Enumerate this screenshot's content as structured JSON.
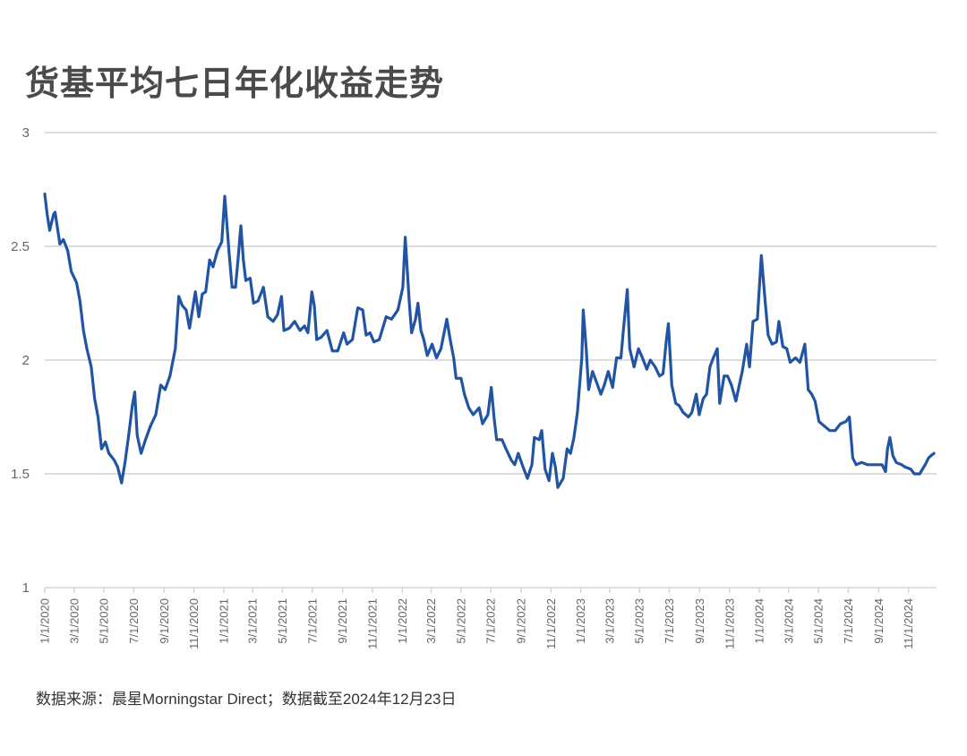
{
  "chart_data": {
    "type": "line",
    "title": "货基平均七日年化收益走势",
    "xlabel": "",
    "ylabel": "",
    "ylim": [
      1,
      3
    ],
    "yticks": [
      "1",
      "1.5",
      "2",
      "2.5",
      "3"
    ],
    "xlim": [
      "2020-01-01",
      "2024-12-23"
    ],
    "xticks": [
      "1/1/2020",
      "3/1/2020",
      "5/1/2020",
      "7/1/2020",
      "9/1/2020",
      "11/1/2020",
      "1/1/2021",
      "3/1/2021",
      "5/1/2021",
      "7/1/2021",
      "9/1/2021",
      "11/1/2021",
      "1/1/2022",
      "3/1/2022",
      "5/1/2022",
      "7/1/2022",
      "9/1/2022",
      "11/1/2022",
      "1/1/2023",
      "3/1/2023",
      "5/1/2023",
      "7/1/2023",
      "9/1/2023",
      "11/1/2023",
      "1/1/2024",
      "3/1/2024",
      "5/1/2024",
      "7/1/2024",
      "9/1/2024",
      "11/1/2024"
    ],
    "grid": true,
    "legend": "none",
    "line_color": "#2155a3",
    "points": [
      [
        "2020-01-01",
        2.73
      ],
      [
        "2020-01-06",
        2.64
      ],
      [
        "2020-01-11",
        2.57
      ],
      [
        "2020-01-19",
        2.64
      ],
      [
        "2020-01-22",
        2.65
      ],
      [
        "2020-02-01",
        2.51
      ],
      [
        "2020-02-08",
        2.53
      ],
      [
        "2020-02-17",
        2.48
      ],
      [
        "2020-02-24",
        2.39
      ],
      [
        "2020-03-06",
        2.34
      ],
      [
        "2020-03-13",
        2.26
      ],
      [
        "2020-03-20",
        2.13
      ],
      [
        "2020-03-27",
        2.05
      ],
      [
        "2020-04-05",
        1.97
      ],
      [
        "2020-04-12",
        1.83
      ],
      [
        "2020-04-19",
        1.75
      ],
      [
        "2020-04-26",
        1.61
      ],
      [
        "2020-05-04",
        1.64
      ],
      [
        "2020-05-11",
        1.59
      ],
      [
        "2020-05-22",
        1.56
      ],
      [
        "2020-05-29",
        1.53
      ],
      [
        "2020-06-06",
        1.46
      ],
      [
        "2020-06-13",
        1.55
      ],
      [
        "2020-06-20",
        1.66
      ],
      [
        "2020-06-28",
        1.8
      ],
      [
        "2020-07-03",
        1.86
      ],
      [
        "2020-07-08",
        1.67
      ],
      [
        "2020-07-16",
        1.59
      ],
      [
        "2020-07-25",
        1.65
      ],
      [
        "2020-08-04",
        1.71
      ],
      [
        "2020-08-15",
        1.76
      ],
      [
        "2020-08-25",
        1.89
      ],
      [
        "2020-09-03",
        1.87
      ],
      [
        "2020-09-13",
        1.93
      ],
      [
        "2020-09-24",
        2.05
      ],
      [
        "2020-10-01",
        2.28
      ],
      [
        "2020-10-08",
        2.24
      ],
      [
        "2020-10-16",
        2.22
      ],
      [
        "2020-10-23",
        2.14
      ],
      [
        "2020-11-04",
        2.3
      ],
      [
        "2020-11-11",
        2.19
      ],
      [
        "2020-11-18",
        2.29
      ],
      [
        "2020-11-25",
        2.3
      ],
      [
        "2020-12-03",
        2.44
      ],
      [
        "2020-12-10",
        2.41
      ],
      [
        "2020-12-19",
        2.48
      ],
      [
        "2020-12-28",
        2.52
      ],
      [
        "2021-01-03",
        2.72
      ],
      [
        "2021-01-12",
        2.47
      ],
      [
        "2021-01-18",
        2.32
      ],
      [
        "2021-01-25",
        2.32
      ],
      [
        "2021-01-30",
        2.44
      ],
      [
        "2021-02-05",
        2.59
      ],
      [
        "2021-02-10",
        2.44
      ],
      [
        "2021-02-15",
        2.35
      ],
      [
        "2021-02-24",
        2.36
      ],
      [
        "2021-03-03",
        2.25
      ],
      [
        "2021-03-12",
        2.26
      ],
      [
        "2021-03-23",
        2.32
      ],
      [
        "2021-04-01",
        2.19
      ],
      [
        "2021-04-12",
        2.17
      ],
      [
        "2021-04-21",
        2.2
      ],
      [
        "2021-04-29",
        2.28
      ],
      [
        "2021-05-04",
        2.13
      ],
      [
        "2021-05-15",
        2.14
      ],
      [
        "2021-05-26",
        2.17
      ],
      [
        "2021-06-06",
        2.13
      ],
      [
        "2021-06-15",
        2.15
      ],
      [
        "2021-06-22",
        2.12
      ],
      [
        "2021-06-30",
        2.3
      ],
      [
        "2021-07-05",
        2.24
      ],
      [
        "2021-07-10",
        2.09
      ],
      [
        "2021-07-19",
        2.1
      ],
      [
        "2021-07-31",
        2.13
      ],
      [
        "2021-08-11",
        2.04
      ],
      [
        "2021-08-22",
        2.04
      ],
      [
        "2021-09-03",
        2.12
      ],
      [
        "2021-09-10",
        2.07
      ],
      [
        "2021-09-21",
        2.09
      ],
      [
        "2021-10-02",
        2.23
      ],
      [
        "2021-10-12",
        2.22
      ],
      [
        "2021-10-19",
        2.11
      ],
      [
        "2021-10-27",
        2.12
      ],
      [
        "2021-11-04",
        2.08
      ],
      [
        "2021-11-15",
        2.09
      ],
      [
        "2021-11-29",
        2.19
      ],
      [
        "2021-12-10",
        2.18
      ],
      [
        "2021-12-23",
        2.22
      ],
      [
        "2022-01-02",
        2.32
      ],
      [
        "2022-01-07",
        2.54
      ],
      [
        "2022-01-15",
        2.26
      ],
      [
        "2022-01-20",
        2.12
      ],
      [
        "2022-01-28",
        2.18
      ],
      [
        "2022-02-02",
        2.25
      ],
      [
        "2022-02-08",
        2.13
      ],
      [
        "2022-02-14",
        2.09
      ],
      [
        "2022-02-21",
        2.02
      ],
      [
        "2022-03-03",
        2.07
      ],
      [
        "2022-03-12",
        2.01
      ],
      [
        "2022-03-21",
        2.05
      ],
      [
        "2022-04-02",
        2.18
      ],
      [
        "2022-04-09",
        2.09
      ],
      [
        "2022-04-16",
        2.01
      ],
      [
        "2022-04-21",
        1.92
      ],
      [
        "2022-05-01",
        1.92
      ],
      [
        "2022-05-08",
        1.85
      ],
      [
        "2022-05-17",
        1.79
      ],
      [
        "2022-05-26",
        1.76
      ],
      [
        "2022-06-07",
        1.79
      ],
      [
        "2022-06-14",
        1.72
      ],
      [
        "2022-06-25",
        1.76
      ],
      [
        "2022-07-02",
        1.88
      ],
      [
        "2022-07-08",
        1.74
      ],
      [
        "2022-07-13",
        1.65
      ],
      [
        "2022-07-24",
        1.65
      ],
      [
        "2022-08-01",
        1.61
      ],
      [
        "2022-08-12",
        1.56
      ],
      [
        "2022-08-19",
        1.54
      ],
      [
        "2022-08-26",
        1.59
      ],
      [
        "2022-09-05",
        1.53
      ],
      [
        "2022-09-14",
        1.48
      ],
      [
        "2022-09-23",
        1.54
      ],
      [
        "2022-09-28",
        1.66
      ],
      [
        "2022-10-08",
        1.65
      ],
      [
        "2022-10-13",
        1.69
      ],
      [
        "2022-10-20",
        1.52
      ],
      [
        "2022-10-28",
        1.47
      ],
      [
        "2022-11-04",
        1.59
      ],
      [
        "2022-11-10",
        1.53
      ],
      [
        "2022-11-15",
        1.44
      ],
      [
        "2022-11-26",
        1.48
      ],
      [
        "2022-12-04",
        1.61
      ],
      [
        "2022-12-11",
        1.59
      ],
      [
        "2022-12-18",
        1.66
      ],
      [
        "2022-12-25",
        1.77
      ],
      [
        "2023-01-03",
        2.01
      ],
      [
        "2023-01-06",
        2.22
      ],
      [
        "2023-01-12",
        2.05
      ],
      [
        "2023-01-17",
        1.87
      ],
      [
        "2023-01-25",
        1.95
      ],
      [
        "2023-02-01",
        1.91
      ],
      [
        "2023-02-11",
        1.85
      ],
      [
        "2023-02-18",
        1.89
      ],
      [
        "2023-02-26",
        1.95
      ],
      [
        "2023-03-07",
        1.88
      ],
      [
        "2023-03-15",
        2.01
      ],
      [
        "2023-03-24",
        2.01
      ],
      [
        "2023-03-29",
        2.13
      ],
      [
        "2023-04-06",
        2.31
      ],
      [
        "2023-04-11",
        2.05
      ],
      [
        "2023-04-20",
        1.97
      ],
      [
        "2023-04-29",
        2.05
      ],
      [
        "2023-05-07",
        2.01
      ],
      [
        "2023-05-16",
        1.96
      ],
      [
        "2023-05-23",
        2.0
      ],
      [
        "2023-06-02",
        1.97
      ],
      [
        "2023-06-11",
        1.93
      ],
      [
        "2023-06-18",
        1.94
      ],
      [
        "2023-06-25",
        2.09
      ],
      [
        "2023-06-29",
        2.16
      ],
      [
        "2023-07-06",
        1.89
      ],
      [
        "2023-07-14",
        1.81
      ],
      [
        "2023-07-21",
        1.8
      ],
      [
        "2023-07-29",
        1.77
      ],
      [
        "2023-08-09",
        1.75
      ],
      [
        "2023-08-16",
        1.77
      ],
      [
        "2023-08-25",
        1.85
      ],
      [
        "2023-08-31",
        1.76
      ],
      [
        "2023-09-08",
        1.83
      ],
      [
        "2023-09-15",
        1.85
      ],
      [
        "2023-09-22",
        1.97
      ],
      [
        "2023-09-29",
        2.01
      ],
      [
        "2023-10-07",
        2.05
      ],
      [
        "2023-10-12",
        1.81
      ],
      [
        "2023-10-21",
        1.93
      ],
      [
        "2023-10-28",
        1.93
      ],
      [
        "2023-11-05",
        1.89
      ],
      [
        "2023-11-14",
        1.82
      ],
      [
        "2023-11-20",
        1.88
      ],
      [
        "2023-11-27",
        1.95
      ],
      [
        "2023-12-06",
        2.07
      ],
      [
        "2023-12-12",
        1.97
      ],
      [
        "2023-12-19",
        2.17
      ],
      [
        "2023-12-28",
        2.18
      ],
      [
        "2024-01-05",
        2.46
      ],
      [
        "2024-01-12",
        2.28
      ],
      [
        "2024-01-19",
        2.11
      ],
      [
        "2024-01-27",
        2.07
      ],
      [
        "2024-02-05",
        2.08
      ],
      [
        "2024-02-10",
        2.17
      ],
      [
        "2024-02-18",
        2.06
      ],
      [
        "2024-02-26",
        2.05
      ],
      [
        "2024-03-04",
        1.99
      ],
      [
        "2024-03-15",
        2.01
      ],
      [
        "2024-03-24",
        1.99
      ],
      [
        "2024-04-03",
        2.07
      ],
      [
        "2024-04-10",
        1.87
      ],
      [
        "2024-04-17",
        1.85
      ],
      [
        "2024-04-24",
        1.82
      ],
      [
        "2024-05-02",
        1.73
      ],
      [
        "2024-05-13",
        1.71
      ],
      [
        "2024-05-24",
        1.69
      ],
      [
        "2024-06-04",
        1.69
      ],
      [
        "2024-06-15",
        1.72
      ],
      [
        "2024-06-26",
        1.73
      ],
      [
        "2024-07-03",
        1.75
      ],
      [
        "2024-07-10",
        1.57
      ],
      [
        "2024-07-17",
        1.54
      ],
      [
        "2024-07-28",
        1.55
      ],
      [
        "2024-08-09",
        1.54
      ],
      [
        "2024-08-20",
        1.54
      ],
      [
        "2024-09-01",
        1.54
      ],
      [
        "2024-09-08",
        1.54
      ],
      [
        "2024-09-15",
        1.51
      ],
      [
        "2024-09-19",
        1.61
      ],
      [
        "2024-09-24",
        1.66
      ],
      [
        "2024-09-30",
        1.58
      ],
      [
        "2024-10-07",
        1.55
      ],
      [
        "2024-10-18",
        1.54
      ],
      [
        "2024-10-25",
        1.53
      ],
      [
        "2024-11-06",
        1.52
      ],
      [
        "2024-11-13",
        1.5
      ],
      [
        "2024-11-24",
        1.5
      ],
      [
        "2024-12-05",
        1.54
      ],
      [
        "2024-12-12",
        1.57
      ],
      [
        "2024-12-17",
        1.58
      ],
      [
        "2024-12-23",
        1.59
      ]
    ]
  },
  "footnote": "数据来源：晨星Morningstar Direct；数据截至2024年12月23日"
}
